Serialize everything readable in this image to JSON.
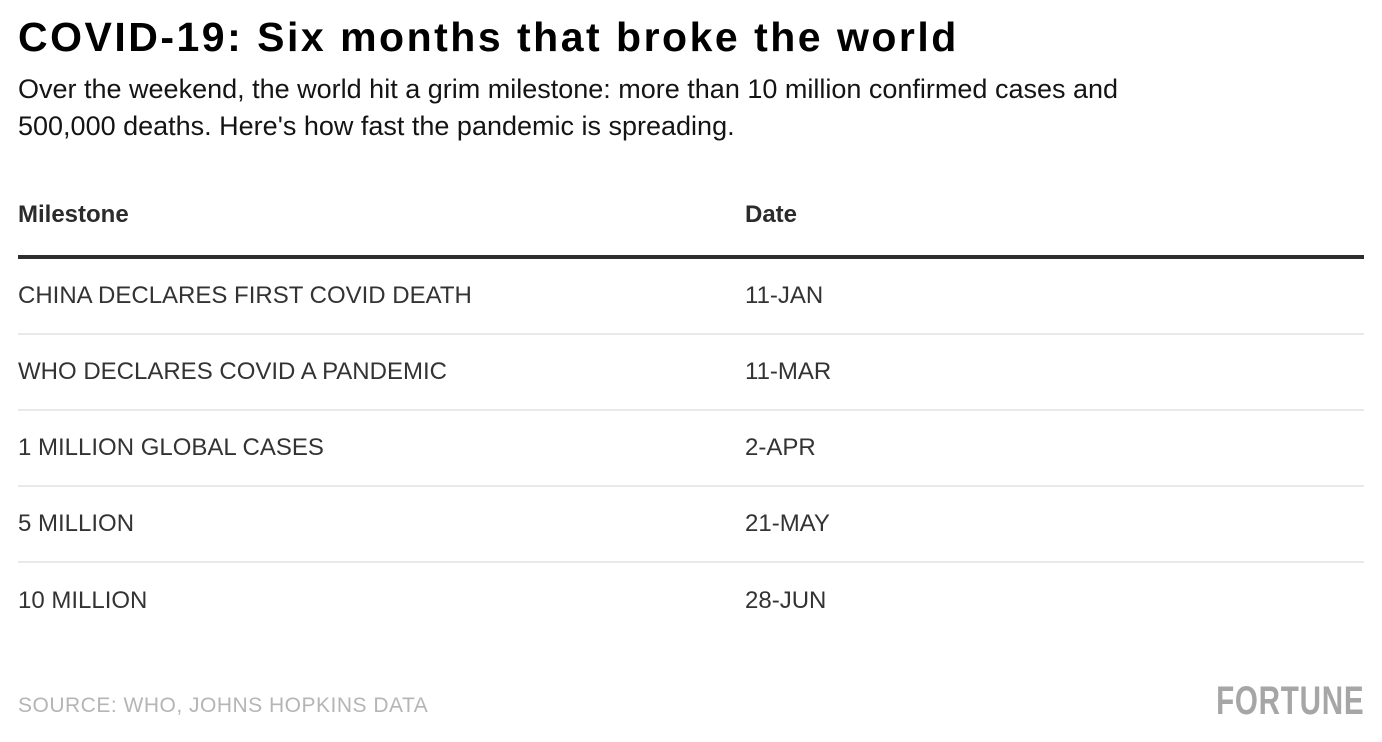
{
  "header": {
    "title": "COVID-19: Six months that broke the world",
    "subtitle_lines": [
      "Over the weekend, the world hit a grim milestone: more than 10 million confirmed cases and",
      "500,000 deaths. Here's how fast the pandemic is spreading."
    ]
  },
  "table": {
    "columns": [
      "Milestone",
      "Date"
    ],
    "rows": [
      {
        "milestone": "CHINA DECLARES FIRST COVID DEATH",
        "date": "11-JAN"
      },
      {
        "milestone": "WHO DECLARES COVID A PANDEMIC",
        "date": "11-MAR"
      },
      {
        "milestone": "1 MILLION GLOBAL CASES",
        "date": "2-APR"
      },
      {
        "milestone": "5 MILLION",
        "date": "21-MAY"
      },
      {
        "milestone": "10 MILLION",
        "date": "28-JUN"
      }
    ]
  },
  "footer": {
    "source": "SOURCE: WHO, JOHNS HOPKINS DATA",
    "brand": "FORTUNE"
  },
  "colors": {
    "background": "#ffffff",
    "title_text": "#000000",
    "subtitle_text": "#141414",
    "column_header_text": "#2b2b2b",
    "row_text": "#333333",
    "header_rule": "#2e2e2e",
    "row_separator": "#e9e9e9",
    "source_text": "#b5b5b5",
    "brand_text": "#a6a6a6"
  },
  "chart_data": {
    "type": "table",
    "title": "COVID-19: Six months that broke the world",
    "subtitle": "Over the weekend, the world hit a grim milestone: more than 10 million confirmed cases and 500,000 deaths. Here's how fast the pandemic is spreading.",
    "columns": [
      "Milestone",
      "Date"
    ],
    "rows": [
      [
        "CHINA DECLARES FIRST COVID DEATH",
        "11-JAN"
      ],
      [
        "WHO DECLARES COVID A PANDEMIC",
        "11-MAR"
      ],
      [
        "1 MILLION GLOBAL CASES",
        "2-APR"
      ],
      [
        "5 MILLION",
        "21-MAY"
      ],
      [
        "10 MILLION",
        "28-JUN"
      ]
    ],
    "source": "SOURCE: WHO, JOHNS HOPKINS DATA",
    "brand": "FORTUNE",
    "legend": false,
    "grid": false
  }
}
